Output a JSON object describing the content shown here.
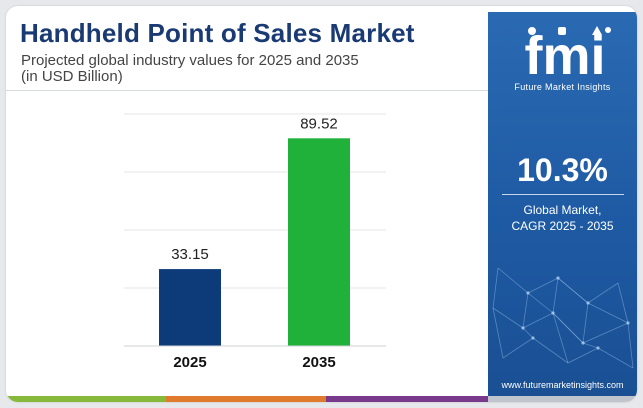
{
  "header": {
    "title": "Handheld Point of Sales Market",
    "subtitle_line1": "Projected global industry values for 2025 and 2035",
    "subtitle_line2": "(in USD Billion)"
  },
  "chart_data": {
    "type": "bar",
    "categories": [
      "2025",
      "2035"
    ],
    "values": [
      33.15,
      89.52
    ],
    "value_labels": [
      "33.15",
      "89.52"
    ],
    "bar_colors": [
      "#0d3a78",
      "#1fb13a"
    ],
    "title": "Handheld Point of Sales Market",
    "ylim": [
      0,
      100
    ],
    "grid": true,
    "legend": "none"
  },
  "sidebar": {
    "logo_text": "fmi",
    "logo_subtitle": "Future Market Insights",
    "cagr_value": "10.3%",
    "cagr_label_line1": "Global Market,",
    "cagr_label_line2": "CAGR 2025 - 2035",
    "website": "www.futuremarketinsights.com"
  },
  "colors": {
    "title": "#1a3a73",
    "sidebar_bg": "#1e5aa3",
    "stripe": [
      "#86b83a",
      "#e07a2c",
      "#7a3a8c",
      "#c0c4cc"
    ]
  }
}
